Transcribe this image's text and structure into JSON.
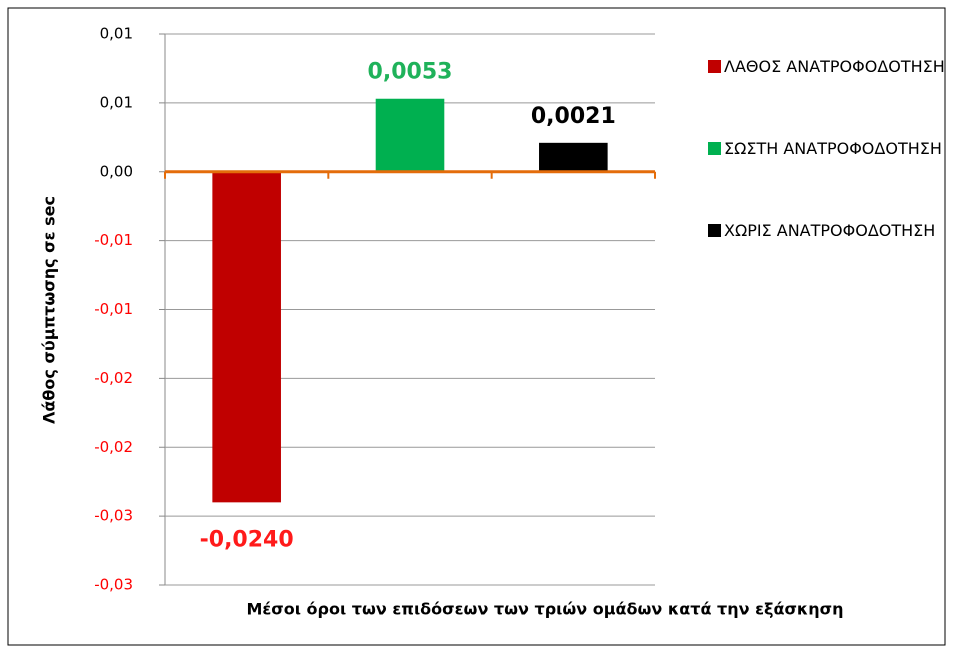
{
  "chart_data": {
    "type": "bar",
    "y_label": "Λάθος σύμπτωσης σε sec",
    "x_label": "Μέσοι όροι των επιδόσεων των τριών ομάδων κατά την εξάσκηση",
    "series": [
      {
        "name": "ΛΑΘΟΣ ΑΝΑΤΡΟΦΟΔΟΤΗΣΗ",
        "color": "#c00000",
        "label_color": "#ff1a1a",
        "values": [
          -0.024
        ],
        "value_labels": [
          "-0,0240"
        ]
      },
      {
        "name": "ΣΩΣΤΗ ΑΝΑΤΡΟΦΟΔΟΤΗΣΗ",
        "color": "#00b050",
        "label_color": "#1fb25a",
        "values": [
          0.0053
        ],
        "value_labels": [
          "0,0053"
        ]
      },
      {
        "name": "ΧΩΡΙΣ ΑΝΑΤΡΟΦΟΔΟΤΗΣΗ",
        "color": "#000000",
        "label_color": "#000000",
        "values": [
          0.0021
        ],
        "value_labels": [
          "0,0021"
        ]
      }
    ],
    "ylim": [
      -0.03,
      0.01
    ],
    "yticks": [
      {
        "value": 0.01,
        "label": "0,01"
      },
      {
        "value": 0.005,
        "label": "0,01"
      },
      {
        "value": 0,
        "label": "0,00"
      },
      {
        "value": -0.005,
        "label": "-0,01"
      },
      {
        "value": -0.01,
        "label": "-0,01"
      },
      {
        "value": -0.015,
        "label": "-0,02"
      },
      {
        "value": -0.02,
        "label": "-0,02"
      },
      {
        "value": -0.025,
        "label": "-0,03"
      },
      {
        "value": -0.03,
        "label": "-0,03"
      }
    ],
    "grid": true,
    "legend": "right",
    "zero_line_color": "#e46c0a",
    "negative_tick_color": "#ff0000"
  }
}
